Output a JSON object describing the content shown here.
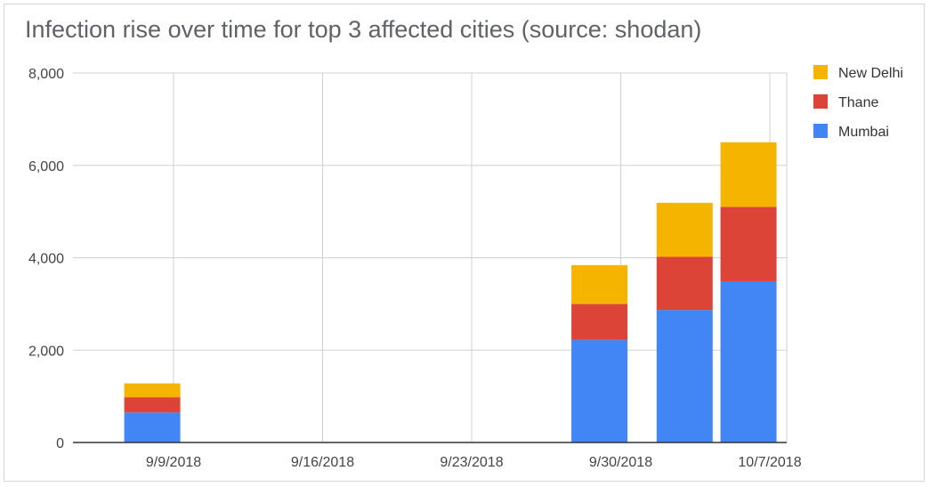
{
  "chart_data": {
    "type": "bar",
    "stacked": true,
    "title": "Infection rise over time for top 3 affected cities (source: shodan)",
    "x_tick_labels": [
      "9/9/2018",
      "9/16/2018",
      "9/23/2018",
      "9/30/2018",
      "10/7/2018"
    ],
    "y_tick_labels": [
      "0",
      "2,000",
      "4,000",
      "6,000",
      "8,000"
    ],
    "ylim": [
      0,
      8000
    ],
    "grid": true,
    "legend_position": "right",
    "bar_dates": [
      "9/8/2018",
      "9/29/2018",
      "10/3/2018",
      "10/6/2018"
    ],
    "series": [
      {
        "name": "Mumbai",
        "color": "#4285f4",
        "values": [
          650,
          2220,
          2870,
          3490
        ]
      },
      {
        "name": "Thane",
        "color": "#db4437",
        "values": [
          330,
          780,
          1150,
          1610
        ]
      },
      {
        "name": "New Delhi",
        "color": "#f4b400",
        "values": [
          300,
          840,
          1170,
          1400
        ]
      }
    ],
    "legend_order": [
      "New Delhi",
      "Thane",
      "Mumbai"
    ]
  }
}
